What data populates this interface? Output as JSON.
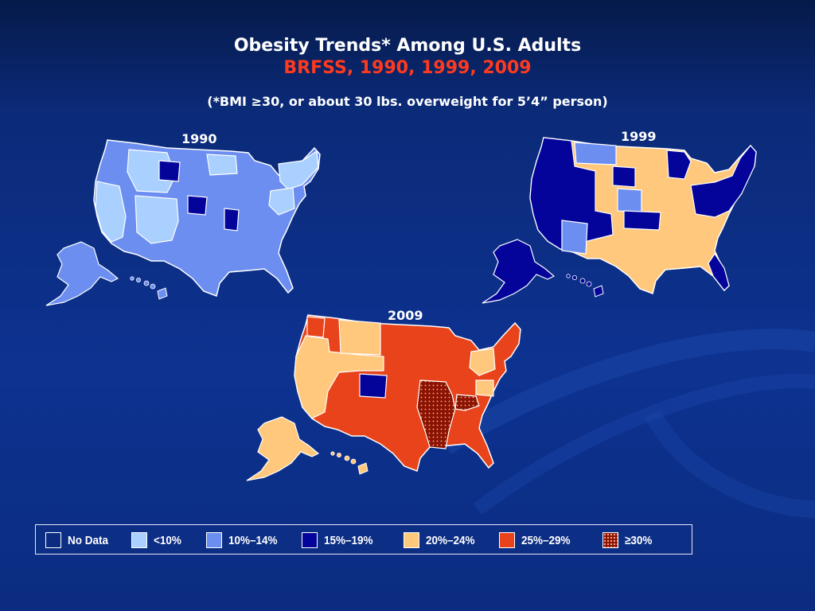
{
  "title": {
    "line1": "Obesity Trends* Among U.S. Adults",
    "line2": "BRFSS, 1990, 1999, 2009",
    "line2_color": "#ff3a1e"
  },
  "subtitle": "(*BMI ≥30, or about 30 lbs. overweight for 5’4” person)",
  "maps": [
    {
      "year": "1990",
      "mainland_color": "#6b8ef0",
      "overlay_color": "#a9d0ff"
    },
    {
      "year": "1999",
      "mainland_color": "#ffc87c",
      "overlay_color": "#04049a"
    },
    {
      "year": "2009",
      "mainland_color": "#e8431a",
      "overlay_color": "#ffc87c"
    }
  ],
  "legend": [
    {
      "label": "No Data",
      "color": "#0b2c80"
    },
    {
      "label": "<10%",
      "color": "#a9d0ff"
    },
    {
      "label": "10%–14%",
      "color": "#6b8ef0"
    },
    {
      "label": "15%–19%",
      "color": "#04049a"
    },
    {
      "label": "20%–24%",
      "color": "#ffc87c"
    },
    {
      "label": "25%–29%",
      "color": "#e8431a"
    },
    {
      "label": "≥30%",
      "color": "#8b1400",
      "pattern": "dotted"
    }
  ]
}
